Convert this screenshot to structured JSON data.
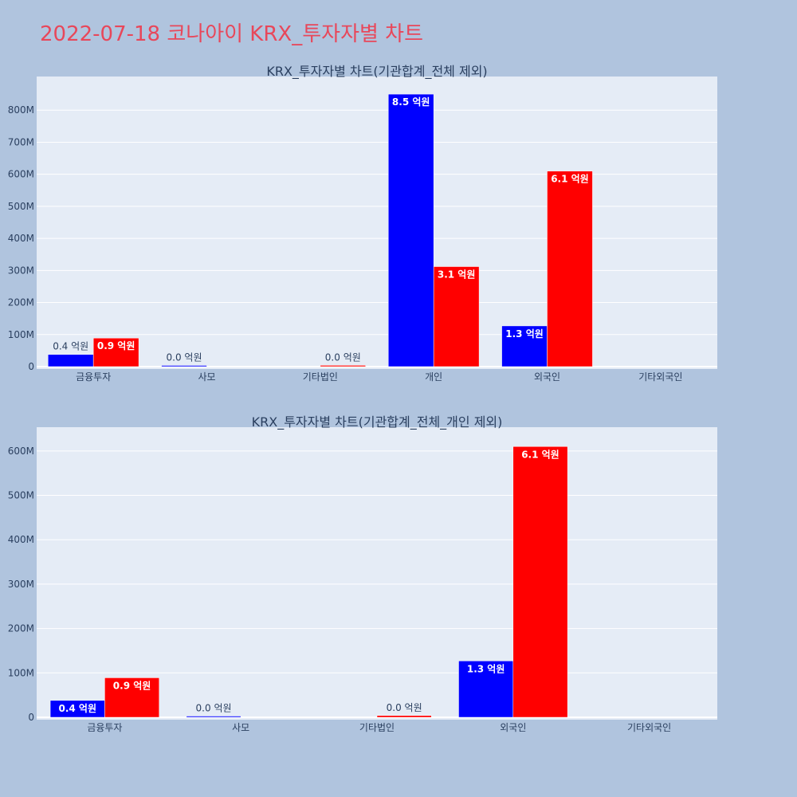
{
  "page": {
    "title": "2022-07-18 코나아이 KRX_투자자별 차트",
    "background": "#b0c4de",
    "title_color": "#e8475a"
  },
  "colors": {
    "plot_bg": "#e5ecf6",
    "buy": "#0000ff",
    "sell": "#ff0000",
    "grid": "#ffffff",
    "tick_text": "#2a3f5f"
  },
  "chart_data": [
    {
      "type": "bar",
      "title": "KRX_투자자별 차트(기관합계_전체 제외)",
      "categories": [
        "금융투자",
        "사모",
        "기타법인",
        "개인",
        "외국인",
        "기타외국인"
      ],
      "ylim": [
        0,
        900000000
      ],
      "yticks": [
        0,
        100000000,
        200000000,
        300000000,
        400000000,
        500000000,
        600000000,
        700000000,
        800000000
      ],
      "ytick_labels": [
        "0",
        "100M",
        "200M",
        "300M",
        "400M",
        "500M",
        "600M",
        "700M",
        "800M"
      ],
      "grid": true,
      "series": [
        {
          "color": "#0000ff",
          "values": [
            38000000,
            1000000,
            null,
            850000000,
            127000000,
            null
          ],
          "labels": [
            "0.4 억원",
            "0.0 억원",
            "",
            "8.5 억원",
            "1.3 억원",
            ""
          ]
        },
        {
          "color": "#ff0000",
          "values": [
            89000000,
            null,
            4000000,
            312000000,
            610000000,
            null
          ],
          "labels": [
            "0.9 억원",
            "",
            "0.0 억원",
            "3.1 억원",
            "6.1 억원",
            ""
          ]
        }
      ]
    },
    {
      "type": "bar",
      "title": "KRX_투자자별 차트(기관합계_전체_개인 제외)",
      "categories": [
        "금융투자",
        "사모",
        "기타법인",
        "외국인",
        "기타외국인"
      ],
      "ylim": [
        0,
        650000000
      ],
      "yticks": [
        0,
        100000000,
        200000000,
        300000000,
        400000000,
        500000000,
        600000000
      ],
      "ytick_labels": [
        "0",
        "100M",
        "200M",
        "300M",
        "400M",
        "500M",
        "600M"
      ],
      "grid": true,
      "series": [
        {
          "color": "#0000ff",
          "values": [
            38000000,
            1000000,
            null,
            127000000,
            null
          ],
          "labels": [
            "0.4 억원",
            "0.0 억원",
            "",
            "1.3 억원",
            ""
          ]
        },
        {
          "color": "#ff0000",
          "values": [
            89000000,
            null,
            4000000,
            610000000,
            null
          ],
          "labels": [
            "0.9 억원",
            "",
            "0.0 억원",
            "6.1 억원",
            ""
          ]
        }
      ]
    }
  ]
}
